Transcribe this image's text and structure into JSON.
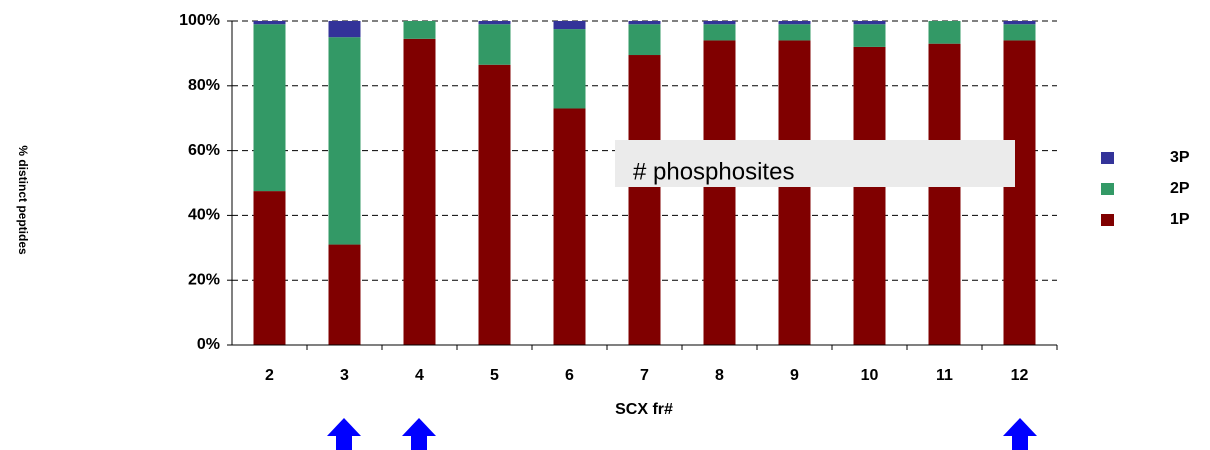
{
  "chart_data": {
    "type": "stacked-bar",
    "y_label": "% distinct peptides",
    "x_label": "SCX fr#",
    "annotation": "# phosphosites",
    "categories": [
      "2",
      "3",
      "4",
      "5",
      "6",
      "7",
      "8",
      "9",
      "10",
      "11",
      "12"
    ],
    "series": [
      {
        "name": "1P",
        "color": "#800000",
        "values": [
          47.5,
          31,
          94.5,
          86.5,
          73,
          89.5,
          94,
          94,
          92,
          93,
          94
        ]
      },
      {
        "name": "2P",
        "color": "#339966",
        "values": [
          51.5,
          64,
          5.5,
          12.5,
          24.5,
          9.5,
          5,
          5,
          7,
          7,
          5
        ]
      },
      {
        "name": "3P",
        "color": "#333399",
        "values": [
          1,
          5,
          0,
          1,
          2.5,
          1,
          1,
          1,
          1,
          0,
          1
        ]
      }
    ],
    "ylim": [
      0,
      100
    ],
    "yticks": [
      {
        "value": 0,
        "label": "0%"
      },
      {
        "value": 20,
        "label": "20%"
      },
      {
        "value": 40,
        "label": "40%"
      },
      {
        "value": 60,
        "label": "60%"
      },
      {
        "value": 80,
        "label": "80%"
      },
      {
        "value": 100,
        "label": "100%"
      }
    ],
    "grid": true,
    "legend": "right"
  }
}
